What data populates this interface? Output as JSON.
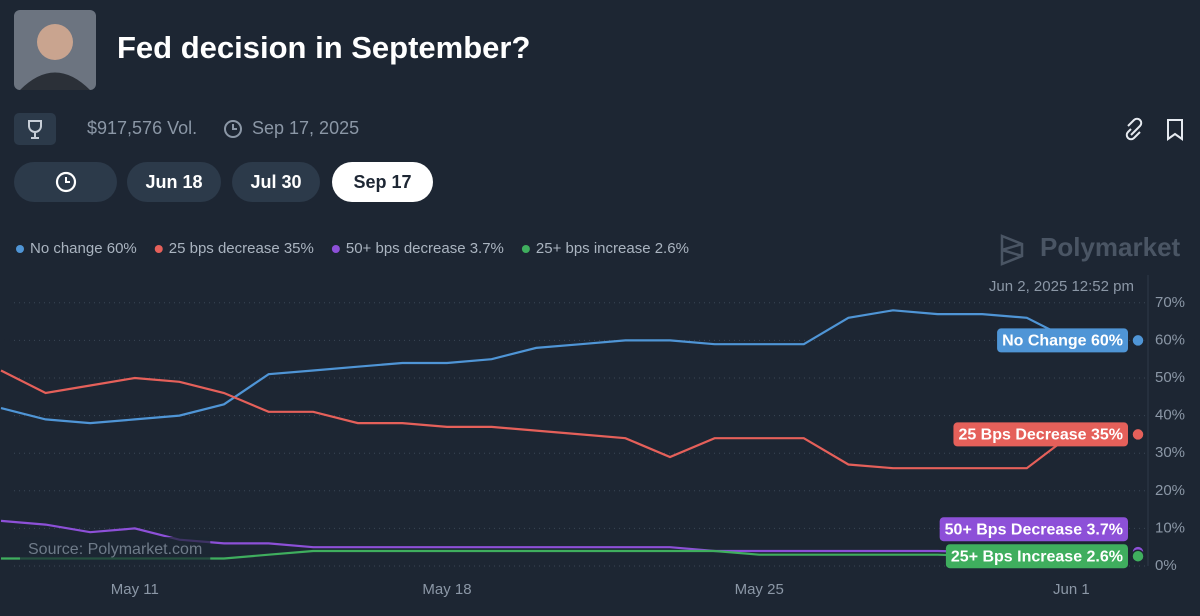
{
  "header": {
    "title": "Fed decision in September?",
    "volume": "$917,576 Vol.",
    "end_date": "Sep 17, 2025"
  },
  "tabs": [
    "Jun 18",
    "Jul 30",
    "Sep 17"
  ],
  "brand": "Polymarket",
  "chart_data": {
    "type": "line",
    "timestamp": "Jun 2, 2025 12:52 pm",
    "source": "Source: Polymarket.com",
    "x": [
      "May 8",
      "May 9",
      "May 10",
      "May 11",
      "May 12",
      "May 13",
      "May 14",
      "May 15",
      "May 16",
      "May 17",
      "May 18",
      "May 19",
      "May 20",
      "May 21",
      "May 22",
      "May 23",
      "May 24",
      "May 25",
      "May 26",
      "May 27",
      "May 28",
      "May 29",
      "May 30",
      "May 31",
      "Jun 1"
    ],
    "xticks": [
      "May 11",
      "May 18",
      "May 25",
      "Jun 1"
    ],
    "ylim": [
      0,
      75
    ],
    "yticks": [
      {
        "value": 0,
        "label": "0%"
      },
      {
        "value": 10,
        "label": "10%"
      },
      {
        "value": 20,
        "label": "20%"
      },
      {
        "value": 30,
        "label": "30%"
      },
      {
        "value": 40,
        "label": "40%"
      },
      {
        "value": 50,
        "label": "50%"
      },
      {
        "value": 60,
        "label": "60%"
      },
      {
        "value": 70,
        "label": "70%"
      }
    ],
    "grid": true,
    "series": [
      {
        "name": "No change 60%",
        "end_label": "No Change 60%",
        "color": "#4f95d6",
        "values": [
          42,
          39,
          38,
          39,
          40,
          43,
          51,
          52,
          53,
          54,
          54,
          55,
          58,
          59,
          60,
          60,
          59,
          59,
          59,
          66,
          68,
          67,
          67,
          66,
          60
        ]
      },
      {
        "name": "25 bps decrease 35%",
        "end_label": "25 Bps Decrease 35%",
        "color": "#e5605a",
        "values": [
          52,
          46,
          48,
          50,
          49,
          46,
          41,
          41,
          38,
          38,
          37,
          37,
          36,
          35,
          34,
          29,
          34,
          34,
          34,
          27,
          26,
          26,
          26,
          26,
          35
        ]
      },
      {
        "name": "50+ bps decrease 3.7%",
        "end_label": "50+ Bps Decrease 3.7%",
        "color": "#8d50d8",
        "values": [
          12,
          11,
          9,
          10,
          7,
          6,
          6,
          5,
          5,
          5,
          5,
          5,
          5,
          5,
          5,
          5,
          4,
          4,
          4,
          4,
          4,
          4,
          3.7,
          3.7,
          3.7
        ]
      },
      {
        "name": "25+ bps increase 2.6%",
        "end_label": "25+ Bps Increase 2.6%",
        "color": "#3fae5e",
        "values": [
          2,
          2,
          2,
          2,
          2,
          2,
          3,
          4,
          4,
          4,
          4,
          4,
          4,
          4,
          4,
          4,
          4,
          3,
          3,
          3,
          3,
          3,
          2.6,
          2.6,
          2.6
        ]
      }
    ]
  }
}
